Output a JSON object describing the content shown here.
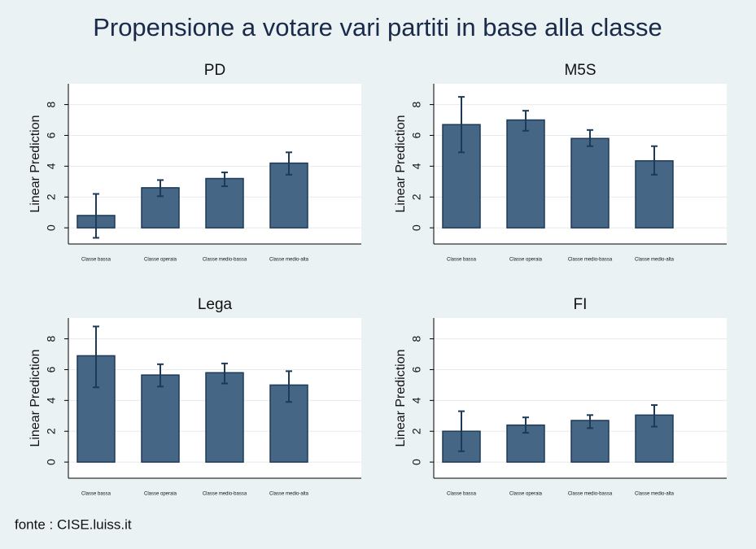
{
  "title": "Propensione a votare vari partiti in base alla classe",
  "source": "fonte : CISE.luiss.it",
  "chart_data": [
    {
      "type": "bar",
      "title": "PD",
      "ylabel": "Linear Prediction",
      "categories": [
        "Classe bassa",
        "Classe operaia",
        "Classe medio-bassa",
        "Classe medio-alta"
      ],
      "values": [
        0.8,
        2.6,
        3.2,
        4.2
      ],
      "ci_low": [
        -0.65,
        2.05,
        2.7,
        3.45
      ],
      "ci_high": [
        2.2,
        3.1,
        3.6,
        4.9
      ],
      "color": "#466685",
      "ylim": [
        -1.05,
        9.35
      ],
      "yticks": [
        0,
        2,
        4,
        6,
        8
      ],
      "grid": true
    },
    {
      "type": "bar",
      "title": "M5S",
      "ylabel": "Linear Prediction",
      "categories": [
        "Classe bassa",
        "Classe operaia",
        "Classe medio-bassa",
        "Classe medio-alta"
      ],
      "values": [
        6.7,
        7.0,
        5.8,
        4.35
      ],
      "ci_low": [
        4.9,
        6.3,
        5.3,
        3.45
      ],
      "ci_high": [
        8.5,
        7.6,
        6.35,
        5.3
      ],
      "color": "#466685",
      "ylim": [
        -1.05,
        9.35
      ],
      "yticks": [
        0,
        2,
        4,
        6,
        8
      ],
      "grid": true
    },
    {
      "type": "bar",
      "title": "Lega",
      "ylabel": "Linear Prediction",
      "categories": [
        "Classe bassa",
        "Classe operaia",
        "Classe medio-bassa",
        "Classe medio-alta"
      ],
      "values": [
        6.9,
        5.65,
        5.8,
        5.0
      ],
      "ci_low": [
        4.85,
        4.9,
        5.1,
        3.9
      ],
      "ci_high": [
        8.8,
        6.35,
        6.4,
        5.9
      ],
      "color": "#466685",
      "ylim": [
        -1.05,
        9.35
      ],
      "yticks": [
        0,
        2,
        4,
        6,
        8
      ],
      "grid": true
    },
    {
      "type": "bar",
      "title": "FI",
      "ylabel": "Linear Prediction",
      "categories": [
        "Classe bassa",
        "Classe operaia",
        "Classe medio-bassa",
        "Classe medio-alta"
      ],
      "values": [
        2.0,
        2.4,
        2.7,
        3.05
      ],
      "ci_low": [
        0.7,
        1.9,
        2.2,
        2.3
      ],
      "ci_high": [
        3.3,
        2.9,
        3.05,
        3.7
      ],
      "color": "#466685",
      "ylim": [
        -1.05,
        9.35
      ],
      "yticks": [
        0,
        2,
        4,
        6,
        8
      ],
      "grid": true
    }
  ]
}
